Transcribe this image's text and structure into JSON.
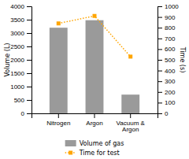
{
  "chart_data": {
    "type": "bar",
    "categories": [
      "Nitrogen",
      "Argon",
      "Vacuum &\nArgon"
    ],
    "series": [
      {
        "name": "Volume of gas",
        "type": "bar",
        "color": "#9a9a9a",
        "values": [
          3200,
          3480,
          700
        ]
      },
      {
        "name": "Time for test",
        "type": "line",
        "axis": "y2",
        "color": "#FFA500",
        "marker": "square",
        "line_style": "dotted",
        "values": [
          840,
          910,
          530
        ]
      }
    ],
    "ylabel": "Volume (L)",
    "y2label": "Time (s)",
    "ylim": [
      0,
      4000
    ],
    "yticks": [
      0,
      500,
      1000,
      1500,
      2000,
      2500,
      3000,
      3500,
      4000
    ],
    "y2lim": [
      0,
      1000
    ],
    "y2ticks": [
      0,
      100,
      200,
      300,
      400,
      500,
      600,
      700,
      800,
      900,
      1000
    ],
    "grid": false,
    "legend": "bottom"
  }
}
